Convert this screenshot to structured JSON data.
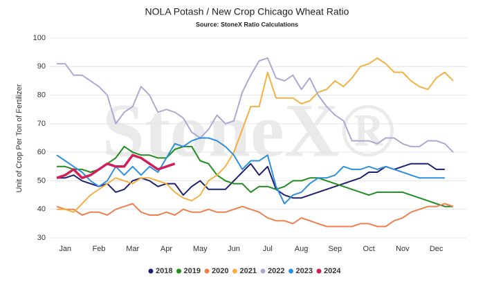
{
  "chart_data": {
    "type": "line",
    "title": "NOLA Potash / New Crop Chicago Wheat Ratio",
    "subtitle": "Source: StoneX Ratio Calculations",
    "y_label": "Unit of Crop Per Ton of Fertilizer",
    "watermark": "StoneX®",
    "categories": [
      null,
      "Jan",
      null,
      null,
      null,
      "Feb",
      null,
      null,
      null,
      "Mar",
      null,
      null,
      null,
      "Apr",
      null,
      null,
      null,
      "May",
      null,
      null,
      null,
      "Jun",
      null,
      null,
      null,
      "Jul",
      null,
      null,
      null,
      "Aug",
      null,
      null,
      null,
      "Sep",
      null,
      null,
      null,
      "Oct",
      null,
      null,
      null,
      "Nov",
      null,
      null,
      null,
      "Dec",
      null,
      null
    ],
    "ylim": [
      30,
      100
    ],
    "yticks": [
      30,
      40,
      50,
      60,
      70,
      80,
      90,
      100
    ],
    "grid": true,
    "legend": "bottom",
    "series": [
      {
        "name": "2018",
        "color": "#1b2170",
        "values": [
          51,
          51,
          52,
          50,
          49,
          48,
          49,
          46,
          47,
          50,
          51,
          50,
          48,
          49,
          49,
          45,
          48,
          50,
          47,
          47,
          47,
          50,
          53,
          56,
          52,
          55,
          47,
          45,
          44,
          44,
          45,
          46,
          47,
          48,
          49,
          50,
          51,
          53,
          53,
          55,
          54,
          55,
          56,
          56,
          56,
          54,
          54,
          null
        ]
      },
      {
        "name": "2019",
        "color": "#1e8c1e",
        "values": [
          55,
          55,
          54,
          54,
          53,
          54,
          56,
          58,
          62,
          60,
          59,
          59,
          58,
          58,
          61,
          62,
          62,
          57,
          56,
          52,
          50,
          49,
          49,
          46,
          48,
          48,
          47,
          48,
          50,
          50,
          51,
          51,
          50,
          49,
          48,
          47,
          46,
          45,
          46,
          46,
          46,
          46,
          45,
          44,
          43,
          42,
          41,
          41
        ]
      },
      {
        "name": "2020",
        "color": "#f07f4e",
        "values": [
          41,
          40,
          40,
          38,
          39,
          39,
          38,
          40,
          41,
          42,
          39,
          38,
          38,
          39,
          38,
          40,
          39,
          39,
          40,
          39,
          39,
          40,
          41,
          40,
          39,
          37,
          36,
          36,
          35,
          37,
          36,
          35,
          34,
          34,
          34,
          34,
          35,
          35,
          34,
          34,
          36,
          37,
          39,
          40,
          41,
          41,
          42,
          41
        ]
      },
      {
        "name": "2021",
        "color": "#f5b041",
        "values": [
          40,
          40,
          39,
          42,
          45,
          47,
          49,
          51,
          50,
          49,
          51,
          51,
          50,
          49,
          46,
          44,
          43,
          45,
          50,
          52,
          55,
          60,
          68,
          76,
          76,
          88,
          79,
          79,
          79,
          77,
          78,
          81,
          82,
          85,
          83,
          86,
          90,
          91,
          93,
          91,
          88,
          88,
          85,
          83,
          82,
          86,
          88,
          85
        ]
      },
      {
        "name": "2022",
        "color": "#a9a9d4",
        "values": [
          91,
          91,
          87,
          87,
          85,
          83,
          80,
          70,
          74,
          76,
          83,
          80,
          74,
          75,
          74,
          72,
          67,
          65,
          68,
          73,
          70,
          71,
          81,
          87,
          92,
          93,
          86,
          85,
          87,
          82,
          86,
          80,
          76,
          73,
          71,
          64,
          64,
          64,
          63,
          65,
          65,
          63,
          62,
          62,
          64,
          64,
          63,
          60
        ]
      },
      {
        "name": "2023",
        "color": "#2e8fdd",
        "values": [
          59,
          57,
          55,
          53,
          50,
          48,
          50,
          55,
          52,
          55,
          52,
          55,
          53,
          58,
          63,
          62,
          64,
          65,
          65,
          64,
          62,
          59,
          54,
          57,
          57,
          59,
          48,
          42,
          45,
          46,
          49,
          51,
          51,
          52,
          55,
          54,
          54,
          55,
          54,
          55,
          54,
          53,
          52,
          51,
          51,
          51,
          51,
          null
        ]
      },
      {
        "name": "2024",
        "color": "#d11f5a",
        "values": [
          51,
          52,
          54,
          51,
          52,
          54,
          56,
          55,
          55,
          59,
          58,
          56,
          54,
          55,
          56,
          null,
          null,
          null,
          null,
          null,
          null,
          null,
          null,
          null,
          null,
          null,
          null,
          null,
          null,
          null,
          null,
          null,
          null,
          null,
          null,
          null,
          null,
          null,
          null,
          null,
          null,
          null,
          null,
          null,
          null,
          null,
          null,
          null
        ]
      }
    ]
  }
}
